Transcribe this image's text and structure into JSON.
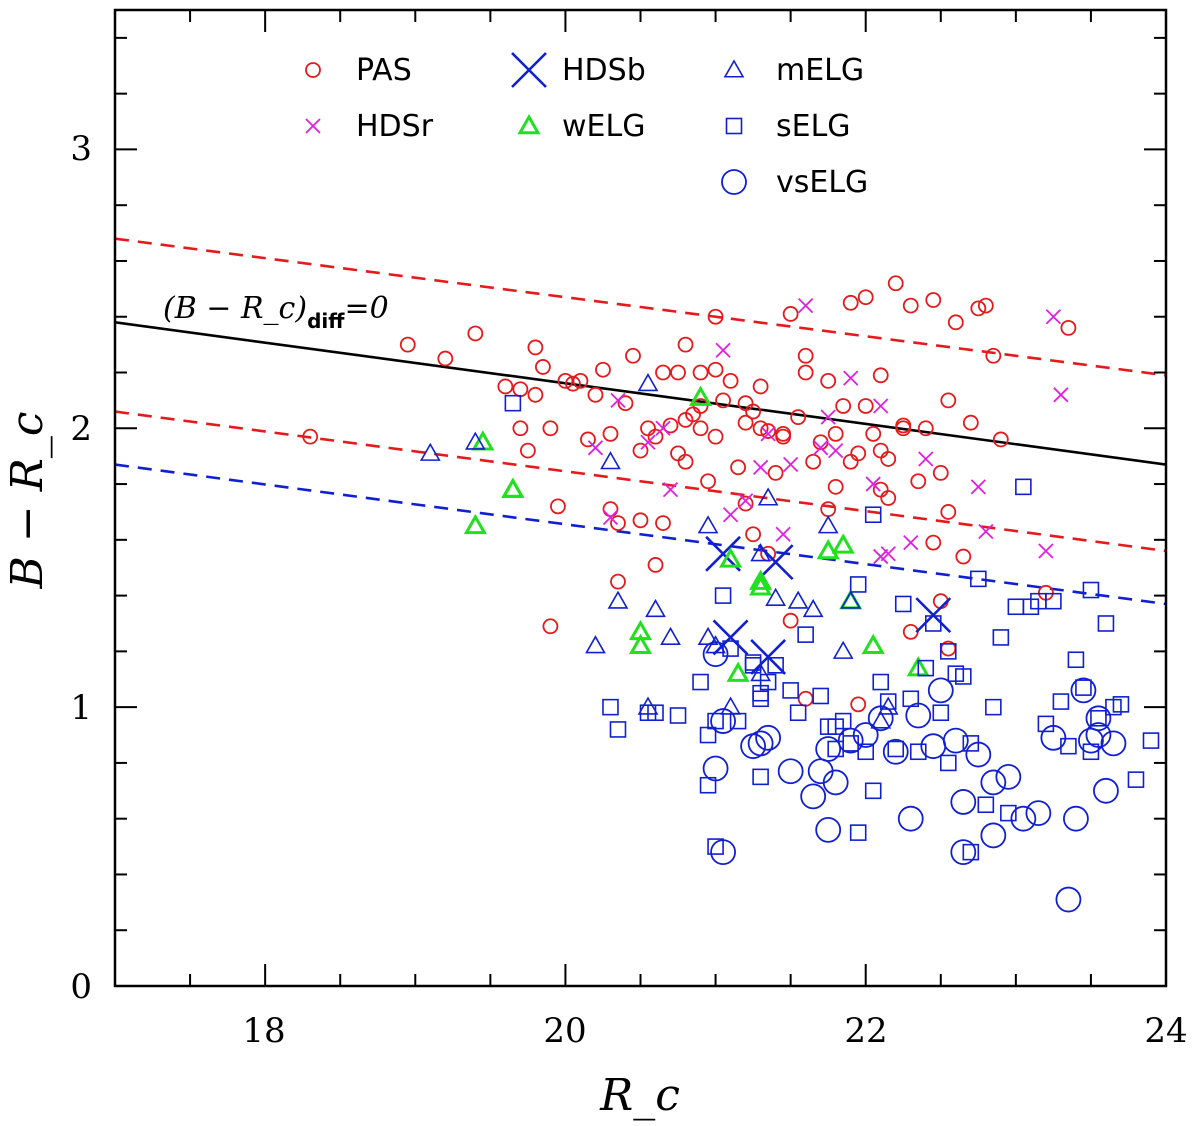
{
  "chart_data": {
    "type": "scatter",
    "xlabel": "R_c",
    "ylabel": "B − R_c",
    "xlim": [
      17,
      24
    ],
    "ylim": [
      0,
      3.5
    ],
    "x_ticks": [
      "18",
      "20",
      "22",
      "24"
    ],
    "y_ticks": [
      "0",
      "1",
      "2",
      "3"
    ],
    "annotation": {
      "main": "(B − R_c)",
      "sub": "diff",
      "rest": "=0"
    },
    "colors": {
      "red": "#e41a1c",
      "magenta": "#e020e0",
      "blue": "#1020d0",
      "green": "#20e020",
      "black": "#000000"
    },
    "lines": [
      {
        "name": "relation-zero",
        "style": "solid",
        "color": "#000000",
        "x": [
          17,
          24
        ],
        "y": [
          2.38,
          1.87
        ]
      },
      {
        "name": "relation-upper",
        "style": "dashed",
        "color": "#e41a1c",
        "x": [
          17,
          24
        ],
        "y": [
          2.68,
          2.19
        ]
      },
      {
        "name": "relation-lower",
        "style": "dashed",
        "color": "#e41a1c",
        "x": [
          17,
          24
        ],
        "y": [
          2.06,
          1.56
        ]
      },
      {
        "name": "relation-blue",
        "style": "dashed",
        "color": "#1020d0",
        "x": [
          17,
          24
        ],
        "y": [
          1.87,
          1.37
        ]
      }
    ],
    "series": [
      {
        "name": "PAS",
        "marker": "circle-small",
        "color": "#e41a1c",
        "x": [
          18.3,
          18.95,
          19.2,
          19.4,
          19.6,
          19.7,
          19.75,
          19.8,
          19.8,
          19.85,
          19.9,
          19.95,
          20.0,
          20.05,
          20.1,
          20.15,
          20.2,
          20.25,
          20.3,
          20.3,
          20.35,
          20.4,
          20.45,
          20.5,
          20.5,
          20.55,
          20.6,
          20.6,
          20.65,
          20.7,
          20.75,
          20.75,
          20.8,
          20.8,
          20.85,
          20.9,
          20.9,
          20.95,
          21.0,
          21.0,
          21.05,
          21.1,
          21.15,
          21.2,
          21.2,
          21.25,
          21.3,
          21.35,
          21.4,
          21.45,
          21.5,
          21.55,
          21.6,
          21.6,
          21.65,
          21.7,
          21.75,
          21.8,
          21.8,
          21.85,
          21.9,
          21.95,
          22.0,
          22.0,
          22.05,
          22.1,
          22.1,
          22.15,
          22.2,
          22.25,
          22.3,
          22.35,
          22.4,
          22.45,
          22.5,
          22.55,
          22.6,
          22.65,
          22.7,
          22.8,
          22.85,
          22.9,
          23.2,
          23.35,
          19.7,
          20.8,
          21.25,
          22.75,
          19.9,
          20.35,
          20.65,
          22.25,
          22.55,
          22.1,
          21.9,
          21.45,
          21.2,
          22.5,
          20.9,
          21.0,
          21.3,
          21.6,
          21.75,
          22.15,
          22.3,
          22.55,
          21.95,
          21.5,
          21.35,
          22.45
        ],
        "y": [
          1.97,
          2.3,
          2.25,
          2.34,
          2.15,
          2.0,
          1.92,
          2.12,
          2.29,
          2.22,
          2.0,
          1.72,
          2.17,
          2.16,
          2.17,
          1.96,
          2.12,
          2.21,
          1.98,
          1.71,
          1.45,
          2.09,
          2.26,
          1.92,
          1.67,
          2.0,
          1.97,
          1.51,
          1.66,
          2.01,
          2.2,
          1.91,
          1.88,
          2.3,
          2.05,
          2.2,
          2.0,
          1.81,
          2.4,
          2.21,
          2.1,
          2.17,
          1.86,
          2.02,
          1.73,
          2.06,
          2.0,
          1.99,
          1.84,
          1.97,
          2.41,
          2.04,
          2.26,
          2.2,
          1.88,
          1.95,
          2.17,
          1.79,
          1.98,
          2.08,
          2.45,
          1.91,
          2.47,
          2.08,
          1.98,
          1.92,
          2.19,
          1.75,
          2.52,
          2.01,
          2.44,
          1.81,
          2.0,
          2.46,
          1.84,
          1.7,
          2.38,
          1.54,
          2.02,
          2.44,
          2.26,
          1.96,
          1.41,
          2.36,
          2.14,
          2.03,
          1.62,
          2.43,
          1.29,
          1.66,
          2.2,
          2.0,
          2.1,
          1.78,
          1.88,
          1.98,
          2.09,
          1.38,
          2.08,
          1.97,
          2.15,
          1.03,
          1.71,
          1.89,
          1.27,
          1.21,
          1.01,
          1.31,
          1.55,
          1.59
        ]
      },
      {
        "name": "HDSr",
        "marker": "x-small",
        "color": "#e020e0",
        "x": [
          20.2,
          20.3,
          20.35,
          20.55,
          20.7,
          21.05,
          21.1,
          21.2,
          21.3,
          21.35,
          21.45,
          21.5,
          21.6,
          21.7,
          21.75,
          21.8,
          22.05,
          22.1,
          22.1,
          22.15,
          22.3,
          22.4,
          22.75,
          22.8,
          23.25,
          23.2,
          23.3,
          21.05,
          20.65,
          21.9
        ],
        "y": [
          1.93,
          1.68,
          2.1,
          1.95,
          1.78,
          2.28,
          1.69,
          1.74,
          1.86,
          1.98,
          1.62,
          1.87,
          2.44,
          1.93,
          2.04,
          1.92,
          1.8,
          2.08,
          1.54,
          1.55,
          1.59,
          1.89,
          1.79,
          1.63,
          2.4,
          1.56,
          2.12,
          1.55,
          2.0,
          2.18
        ]
      },
      {
        "name": "HDSb",
        "marker": "x-large",
        "color": "#1020d0",
        "x": [
          21.05,
          21.1,
          21.35,
          21.4,
          22.45
        ],
        "y": [
          1.55,
          1.25,
          1.18,
          1.52,
          1.33
        ]
      },
      {
        "name": "wELG",
        "marker": "triangle-bold",
        "color": "#20e020",
        "x": [
          19.4,
          19.45,
          19.65,
          19.65,
          20.5,
          20.5,
          20.9,
          21.1,
          21.15,
          21.3,
          21.3,
          21.75,
          21.85,
          21.9,
          22.05,
          22.35
        ],
        "y": [
          1.65,
          1.95,
          1.78,
          1.78,
          1.27,
          1.22,
          2.11,
          1.53,
          1.12,
          1.43,
          1.45,
          1.56,
          1.58,
          1.38,
          1.22,
          1.14
        ]
      },
      {
        "name": "mELG",
        "marker": "triangle",
        "color": "#1020d0",
        "x": [
          19.1,
          19.4,
          20.2,
          20.3,
          20.35,
          20.55,
          20.6,
          20.7,
          20.95,
          21.0,
          21.1,
          21.3,
          21.35,
          21.4,
          21.55,
          21.65,
          21.75,
          21.85,
          21.9,
          22.1,
          22.15,
          20.95,
          20.55,
          21.3
        ],
        "y": [
          1.91,
          1.95,
          1.22,
          1.88,
          1.38,
          2.16,
          1.35,
          1.25,
          1.65,
          1.22,
          1.0,
          1.55,
          1.75,
          1.39,
          1.38,
          1.35,
          1.65,
          1.2,
          1.38,
          0.95,
          1.0,
          1.25,
          1.0,
          1.12
        ]
      },
      {
        "name": "sELG",
        "marker": "square",
        "color": "#1020d0",
        "x": [
          19.65,
          20.3,
          20.35,
          20.55,
          20.6,
          20.75,
          20.9,
          20.95,
          21.0,
          21.0,
          21.05,
          21.1,
          21.15,
          21.25,
          21.3,
          21.3,
          21.35,
          21.4,
          21.5,
          21.55,
          21.6,
          21.7,
          21.75,
          21.8,
          21.85,
          21.9,
          21.95,
          22.0,
          22.05,
          22.1,
          22.15,
          22.2,
          22.25,
          22.3,
          22.35,
          22.4,
          22.45,
          22.5,
          22.55,
          22.6,
          22.65,
          22.7,
          22.75,
          22.8,
          22.85,
          22.9,
          22.95,
          23.0,
          23.05,
          23.1,
          23.15,
          23.2,
          23.25,
          23.3,
          23.35,
          23.4,
          23.45,
          23.5,
          23.55,
          23.6,
          23.65,
          23.7,
          23.8,
          23.9,
          21.95,
          22.05,
          22.55,
          23.5,
          21.3,
          20.95,
          21.8,
          21.25,
          22.7
        ],
        "y": [
          2.09,
          1.0,
          0.92,
          0.98,
          0.98,
          0.97,
          1.09,
          0.9,
          0.5,
          0.95,
          1.4,
          1.21,
          0.95,
          1.15,
          0.75,
          1.03,
          1.09,
          1.15,
          1.06,
          0.98,
          1.26,
          1.04,
          0.93,
          0.85,
          0.95,
          0.87,
          1.44,
          0.84,
          1.69,
          1.09,
          1.02,
          0.85,
          1.37,
          1.03,
          0.84,
          1.14,
          1.3,
          0.98,
          1.2,
          1.12,
          1.11,
          0.87,
          1.46,
          0.65,
          1.0,
          1.25,
          0.62,
          1.36,
          1.79,
          1.36,
          1.38,
          0.94,
          1.38,
          1.02,
          0.86,
          1.17,
          1.07,
          1.42,
          0.96,
          1.3,
          1.0,
          1.01,
          0.74,
          0.88,
          0.55,
          0.7,
          0.8,
          0.84,
          1.05,
          0.72,
          0.93,
          1.16,
          0.48
        ]
      },
      {
        "name": "vsELG",
        "marker": "circle-large",
        "color": "#1020d0",
        "x": [
          21.0,
          21.05,
          21.3,
          21.35,
          21.5,
          21.65,
          21.7,
          21.75,
          21.8,
          21.9,
          22.0,
          22.1,
          22.2,
          22.3,
          22.45,
          22.5,
          22.6,
          22.65,
          22.75,
          22.85,
          22.95,
          23.05,
          23.15,
          23.25,
          23.35,
          23.45,
          23.5,
          23.55,
          23.6,
          23.65,
          21.0,
          21.25,
          21.75,
          22.35,
          22.65,
          23.4,
          21.05,
          22.85,
          23.55
        ],
        "y": [
          0.78,
          0.48,
          0.87,
          0.89,
          0.77,
          0.68,
          0.77,
          0.56,
          0.73,
          0.88,
          0.9,
          0.96,
          0.84,
          0.6,
          0.86,
          1.06,
          0.88,
          0.48,
          0.83,
          0.54,
          0.75,
          0.6,
          0.62,
          0.89,
          0.31,
          1.06,
          0.88,
          0.96,
          0.7,
          0.87,
          1.19,
          0.86,
          0.85,
          0.97,
          0.66,
          0.6,
          0.95,
          0.73,
          0.9
        ]
      }
    ],
    "legend": [
      {
        "label": "PAS",
        "marker": "circle-small",
        "color": "#e41a1c"
      },
      {
        "label": "HDSr",
        "marker": "x-small",
        "color": "#e020e0"
      },
      {
        "label": "HDSb",
        "marker": "x-large",
        "color": "#1020d0"
      },
      {
        "label": "wELG",
        "marker": "triangle-bold",
        "color": "#20e020"
      },
      {
        "label": "mELG",
        "marker": "triangle",
        "color": "#1020d0"
      },
      {
        "label": "sELG",
        "marker": "square",
        "color": "#1020d0"
      },
      {
        "label": "vsELG",
        "marker": "circle-large",
        "color": "#1020d0"
      }
    ]
  }
}
